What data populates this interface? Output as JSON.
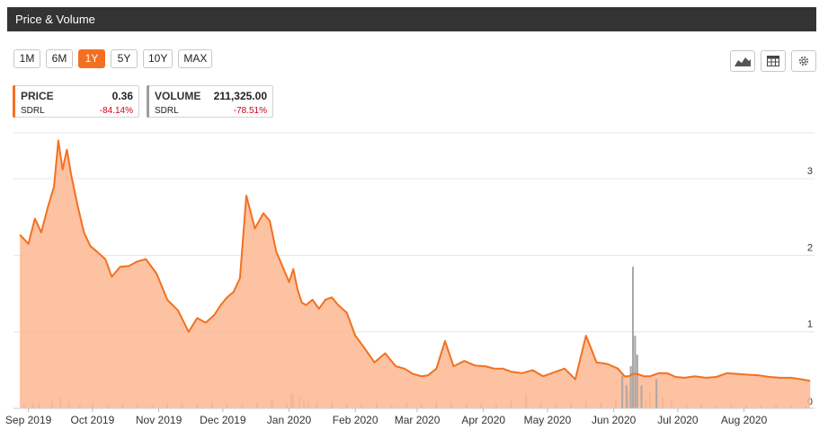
{
  "header": {
    "title": "Price & Volume"
  },
  "ranges": [
    "1M",
    "6M",
    "1Y",
    "5Y",
    "10Y",
    "MAX"
  ],
  "active_range": "1Y",
  "tools": [
    "area-chart-icon",
    "table-icon",
    "gear-icon"
  ],
  "price_card": {
    "label": "PRICE",
    "value": "0.36",
    "ticker": "SDRL",
    "change": "-84.14%",
    "accent": "#f37021"
  },
  "volume_card": {
    "label": "VOLUME",
    "value": "211,325.00",
    "ticker": "SDRL",
    "change": "-78.51%",
    "accent": "#9e9e9e"
  },
  "colors": {
    "price_line": "#f37021",
    "price_fill": "#fbb791",
    "volume": "#a6a6a6",
    "grid": "#e6e6e6",
    "negative": "#d0021b"
  },
  "chart_data": {
    "type": "area",
    "x_tick_labels": [
      "Sep 2019",
      "Oct 2019",
      "Nov 2019",
      "Dec 2019",
      "Jan 2020",
      "Feb 2020",
      "Mar 2020",
      "Apr 2020",
      "May 2020",
      "Jun 2020",
      "Jul 2020",
      "Aug 2020"
    ],
    "y_tick_labels": [
      "0",
      "1",
      "2",
      "3"
    ],
    "ylim": [
      0,
      3.6
    ],
    "grid": true,
    "series": [
      {
        "type": "area",
        "x": [
          "2019-08-28",
          "2019-09-01",
          "2019-09-04",
          "2019-09-07",
          "2019-09-10",
          "2019-09-13",
          "2019-09-15",
          "2019-09-17",
          "2019-09-19",
          "2019-09-21",
          "2019-09-24",
          "2019-09-27",
          "2019-09-30",
          "2019-10-03",
          "2019-10-07",
          "2019-10-10",
          "2019-10-14",
          "2019-10-18",
          "2019-10-22",
          "2019-10-26",
          "2019-10-31",
          "2019-11-05",
          "2019-11-10",
          "2019-11-15",
          "2019-11-19",
          "2019-11-23",
          "2019-11-27",
          "2019-11-30",
          "2019-12-03",
          "2019-12-06",
          "2019-12-09",
          "2019-12-12",
          "2019-12-16",
          "2019-12-20",
          "2019-12-23",
          "2019-12-26",
          "2019-12-29",
          "2020-01-01",
          "2020-01-03",
          "2020-01-05",
          "2020-01-07",
          "2020-01-09",
          "2020-01-12",
          "2020-01-15",
          "2020-01-18",
          "2020-01-21",
          "2020-01-24",
          "2020-01-28",
          "2020-02-01",
          "2020-02-05",
          "2020-02-10",
          "2020-02-15",
          "2020-02-20",
          "2020-02-24",
          "2020-02-28",
          "2020-03-03",
          "2020-03-06",
          "2020-03-10",
          "2020-03-14",
          "2020-03-18",
          "2020-03-23",
          "2020-03-28",
          "2020-04-02",
          "2020-04-06",
          "2020-04-10",
          "2020-04-14",
          "2020-04-19",
          "2020-04-24",
          "2020-04-29",
          "2020-05-04",
          "2020-05-09",
          "2020-05-14",
          "2020-05-19",
          "2020-05-24",
          "2020-05-29",
          "2020-06-03",
          "2020-06-06",
          "2020-06-08",
          "2020-06-10",
          "2020-06-12",
          "2020-06-15",
          "2020-06-18",
          "2020-06-22",
          "2020-06-26",
          "2020-06-30",
          "2020-07-04",
          "2020-07-09",
          "2020-07-14",
          "2020-07-19",
          "2020-07-24",
          "2020-07-29",
          "2020-08-03",
          "2020-08-08",
          "2020-08-13",
          "2020-08-18",
          "2020-08-23",
          "2020-08-28",
          "2020-09-01"
        ],
        "values": [
          2.27,
          2.15,
          2.48,
          2.3,
          2.62,
          2.9,
          3.5,
          3.12,
          3.38,
          3.05,
          2.65,
          2.3,
          2.12,
          2.05,
          1.95,
          1.72,
          1.85,
          1.86,
          1.92,
          1.95,
          1.76,
          1.42,
          1.28,
          1.0,
          1.18,
          1.12,
          1.22,
          1.35,
          1.45,
          1.52,
          1.7,
          2.78,
          2.35,
          2.55,
          2.45,
          2.05,
          1.85,
          1.65,
          1.82,
          1.55,
          1.38,
          1.35,
          1.42,
          1.3,
          1.42,
          1.45,
          1.35,
          1.25,
          0.95,
          0.8,
          0.6,
          0.72,
          0.55,
          0.52,
          0.45,
          0.42,
          0.43,
          0.52,
          0.88,
          0.55,
          0.62,
          0.56,
          0.55,
          0.52,
          0.52,
          0.48,
          0.46,
          0.5,
          0.42,
          0.47,
          0.52,
          0.38,
          0.95,
          0.6,
          0.58,
          0.52,
          0.42,
          0.42,
          0.45,
          0.45,
          0.42,
          0.42,
          0.46,
          0.46,
          0.41,
          0.4,
          0.42,
          0.4,
          0.41,
          0.46,
          0.45,
          0.44,
          0.43,
          0.41,
          0.4,
          0.4,
          0.38,
          0.36
        ]
      },
      {
        "type": "bar",
        "x": [
          "2019-08-30",
          "2019-09-03",
          "2019-09-06",
          "2019-09-12",
          "2019-09-16",
          "2019-09-20",
          "2019-09-25",
          "2019-10-01",
          "2019-10-08",
          "2019-10-15",
          "2019-10-22",
          "2019-10-29",
          "2019-11-05",
          "2019-11-12",
          "2019-11-19",
          "2019-11-26",
          "2019-12-03",
          "2019-12-10",
          "2019-12-17",
          "2019-12-24",
          "2019-12-31",
          "2020-01-02",
          "2020-01-03",
          "2020-01-06",
          "2020-01-08",
          "2020-01-10",
          "2020-01-14",
          "2020-01-21",
          "2020-01-28",
          "2020-02-04",
          "2020-02-11",
          "2020-02-18",
          "2020-02-25",
          "2020-03-03",
          "2020-03-10",
          "2020-03-17",
          "2020-03-24",
          "2020-03-31",
          "2020-04-07",
          "2020-04-14",
          "2020-04-21",
          "2020-04-28",
          "2020-05-05",
          "2020-05-12",
          "2020-05-19",
          "2020-05-26",
          "2020-06-02",
          "2020-06-05",
          "2020-06-07",
          "2020-06-08",
          "2020-06-09",
          "2020-06-10",
          "2020-06-11",
          "2020-06-12",
          "2020-06-14",
          "2020-06-16",
          "2020-06-18",
          "2020-06-21",
          "2020-06-24",
          "2020-06-28",
          "2020-07-05",
          "2020-07-12",
          "2020-07-19",
          "2020-07-26",
          "2020-08-02",
          "2020-08-09",
          "2020-08-16",
          "2020-08-23",
          "2020-08-30"
        ],
        "values": [
          0.05,
          0.08,
          0.06,
          0.1,
          0.14,
          0.09,
          0.06,
          0.07,
          0.05,
          0.06,
          0.05,
          0.05,
          0.06,
          0.07,
          0.05,
          0.08,
          0.06,
          0.05,
          0.08,
          0.12,
          0.06,
          0.2,
          0.18,
          0.16,
          0.12,
          0.1,
          0.08,
          0.09,
          0.07,
          0.06,
          0.07,
          0.05,
          0.08,
          0.07,
          0.09,
          0.08,
          0.06,
          0.07,
          0.06,
          0.1,
          0.18,
          0.08,
          0.06,
          0.07,
          0.09,
          0.08,
          0.1,
          0.42,
          0.3,
          0.22,
          0.55,
          1.85,
          0.95,
          0.7,
          0.3,
          0.12,
          0.2,
          0.38,
          0.14,
          0.1,
          0.06,
          0.05,
          0.04,
          0.05,
          0.04,
          0.04,
          0.05,
          0.04,
          0.03
        ]
      }
    ]
  }
}
